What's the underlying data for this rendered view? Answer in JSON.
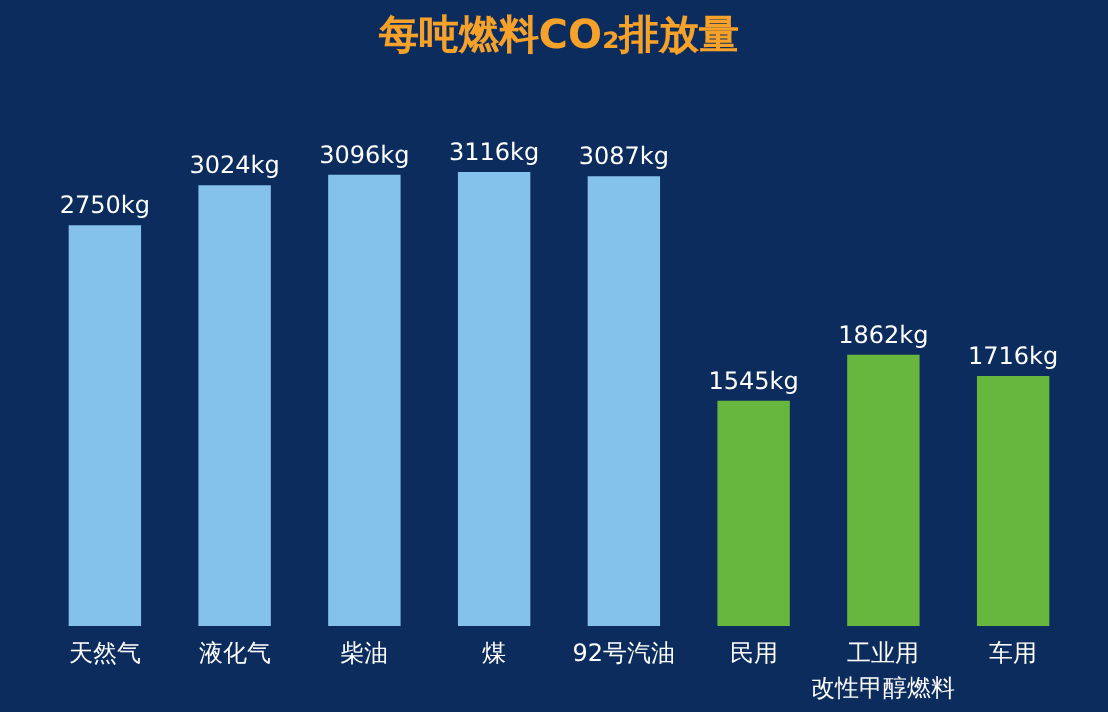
{
  "chart_data": {
    "type": "bar",
    "title": "每吨燃料CO₂排放量",
    "categories": [
      "天然气",
      "液化气",
      "柴油",
      "煤",
      "92号汽油",
      "民用",
      "工业用",
      "车用"
    ],
    "values": [
      2750,
      3024,
      3096,
      3116,
      3087,
      1545,
      1862,
      1716
    ],
    "value_labels": [
      "2750kg",
      "3024kg",
      "3096kg",
      "3116kg",
      "3087kg",
      "1545kg",
      "1862kg",
      "1716kg"
    ],
    "colors": [
      "#8ccaf2",
      "#8ccaf2",
      "#8ccaf2",
      "#8ccaf2",
      "#8ccaf2",
      "#6dbf3c",
      "#6dbf3c",
      "#6dbf3c"
    ],
    "annotations": [
      "改性甲醇燃料"
    ],
    "grid": false
  }
}
